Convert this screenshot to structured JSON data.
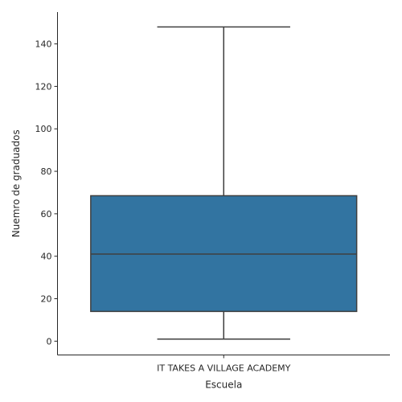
{
  "chart_data": {
    "type": "box",
    "title": "",
    "xlabel": "Escuela",
    "ylabel": "Nuemro de graduados",
    "categories": [
      "IT TAKES A VILLAGE ACADEMY"
    ],
    "boxes": [
      {
        "category": "IT TAKES A VILLAGE ACADEMY",
        "whisker_low": 1,
        "q1": 14,
        "median": 41,
        "q3": 68.5,
        "whisker_high": 148
      }
    ],
    "ylim": [
      -6.5,
      155
    ],
    "yticks": [
      0,
      20,
      40,
      60,
      80,
      100,
      120,
      140
    ],
    "grid": false,
    "box_color": "#3274a1",
    "line_color": "#3f3f3f"
  }
}
